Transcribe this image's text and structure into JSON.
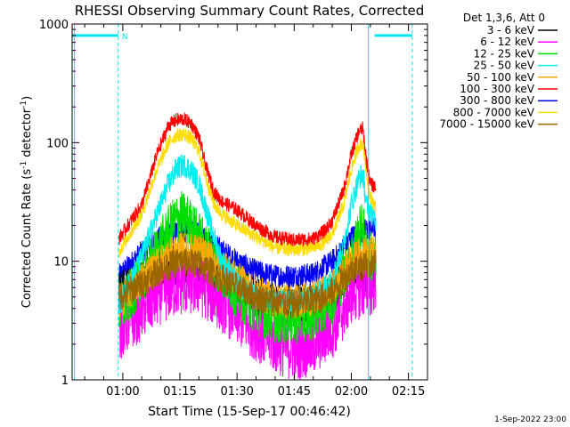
{
  "chart_data": {
    "type": "line",
    "title": "RHESSI Observing Summary Count Rates, Corrected",
    "xlabel": "Start Time (15-Sep-17 00:46:42)",
    "ylabel_main": "Corrected Count Rate (s",
    "ylabel_sup1": "-1",
    "ylabel_mid": " detector",
    "ylabel_sup2": "-1",
    "ylabel_end": ")",
    "yscale": "log",
    "ylim": [
      1,
      1000
    ],
    "xlim_minutes": [
      46.7,
      140.0
    ],
    "x_ticks": [
      {
        "label": "01:00",
        "minutes": 60
      },
      {
        "label": "01:15",
        "minutes": 75
      },
      {
        "label": "01:30",
        "minutes": 90
      },
      {
        "label": "01:45",
        "minutes": 105
      },
      {
        "label": "02:00",
        "minutes": 120
      },
      {
        "label": "02:15",
        "minutes": 135
      }
    ],
    "y_ticks": [
      {
        "label": "1",
        "value": 1
      },
      {
        "label": "10",
        "value": 10
      },
      {
        "label": "100",
        "value": 100
      },
      {
        "label": "1000",
        "value": 1000
      }
    ],
    "legend_header": "Det 1,3,6, Att 0",
    "legend_position": "top-right, outside plot",
    "annotations": {
      "night_marker": "N",
      "night_bar_level": 800,
      "night_segments_minutes": [
        [
          46.7,
          58.8
        ],
        [
          126.1,
          136.0
        ]
      ],
      "vertical_lines_minutes": [
        {
          "minutes": 47.3,
          "style": "solid"
        },
        {
          "minutes": 58.8,
          "style": "dashed"
        },
        {
          "minutes": 124.5,
          "style": "solid"
        },
        {
          "minutes": 136.0,
          "style": "dashed"
        }
      ],
      "line_color": "#00e5ee"
    },
    "series": [
      {
        "name": "3 - 6 keV",
        "color": "#000000",
        "points": [
          [
            59,
            5.5
          ],
          [
            65,
            7
          ],
          [
            70,
            8.5
          ],
          [
            75,
            9.5
          ],
          [
            80,
            9
          ],
          [
            85,
            7.5
          ],
          [
            90,
            6
          ],
          [
            95,
            5
          ],
          [
            100,
            4.3
          ],
          [
            105,
            4.2
          ],
          [
            110,
            4.5
          ],
          [
            115,
            5.5
          ],
          [
            118,
            7
          ],
          [
            120,
            8.5
          ],
          [
            122,
            8
          ],
          [
            124,
            8.2
          ],
          [
            126.5,
            8.3
          ]
        ]
      },
      {
        "name": "6 - 12 keV",
        "color": "#ff00ff",
        "points": [
          [
            59,
            2.7
          ],
          [
            65,
            4
          ],
          [
            70,
            5.5
          ],
          [
            75,
            6.5
          ],
          [
            80,
            6.5
          ],
          [
            85,
            5
          ],
          [
            90,
            3.6
          ],
          [
            95,
            2.7
          ],
          [
            100,
            2.1
          ],
          [
            105,
            1.8
          ],
          [
            110,
            2
          ],
          [
            115,
            2.8
          ],
          [
            118,
            4
          ],
          [
            120,
            5.5
          ],
          [
            122,
            6
          ],
          [
            124,
            6.2
          ],
          [
            126.5,
            6.5
          ]
        ]
      },
      {
        "name": "12 - 25 keV",
        "color": "#00dd00",
        "points": [
          [
            59,
            3.8
          ],
          [
            65,
            7
          ],
          [
            70,
            14
          ],
          [
            73,
            20
          ],
          [
            75,
            24
          ],
          [
            77,
            22
          ],
          [
            80,
            16
          ],
          [
            85,
            9
          ],
          [
            90,
            5.5
          ],
          [
            95,
            4
          ],
          [
            100,
            3.4
          ],
          [
            105,
            3.3
          ],
          [
            110,
            3.6
          ],
          [
            115,
            5
          ],
          [
            118,
            8
          ],
          [
            120,
            11
          ],
          [
            122,
            17
          ],
          [
            123,
            20
          ],
          [
            124,
            12
          ],
          [
            126.5,
            10
          ]
        ]
      },
      {
        "name": "25 - 50 keV",
        "color": "#00eeee",
        "points": [
          [
            59,
            4.3
          ],
          [
            65,
            11
          ],
          [
            69,
            25
          ],
          [
            72,
            45
          ],
          [
            74,
            60
          ],
          [
            76,
            65
          ],
          [
            78,
            58
          ],
          [
            80,
            45
          ],
          [
            83,
            20
          ],
          [
            86,
            10
          ],
          [
            90,
            6.5
          ],
          [
            95,
            5
          ],
          [
            100,
            4.6
          ],
          [
            105,
            4.6
          ],
          [
            110,
            5
          ],
          [
            115,
            7
          ],
          [
            118,
            14
          ],
          [
            120,
            30
          ],
          [
            122,
            50
          ],
          [
            123,
            55
          ],
          [
            124,
            30
          ],
          [
            126.5,
            22
          ]
        ]
      },
      {
        "name": "50 - 100 keV",
        "color": "#ffaa00",
        "points": [
          [
            59,
            4.5
          ],
          [
            65,
            7
          ],
          [
            70,
            10
          ],
          [
            75,
            12.5
          ],
          [
            80,
            12
          ],
          [
            85,
            9.5
          ],
          [
            90,
            7
          ],
          [
            95,
            5.5
          ],
          [
            100,
            4.7
          ],
          [
            105,
            4.6
          ],
          [
            110,
            4.8
          ],
          [
            115,
            6
          ],
          [
            118,
            8
          ],
          [
            120,
            10
          ],
          [
            122,
            11
          ],
          [
            124,
            11.5
          ],
          [
            126.5,
            11.5
          ]
        ]
      },
      {
        "name": "100 - 300 keV",
        "color": "#ff0000",
        "points": [
          [
            59,
            15.5
          ],
          [
            65,
            30
          ],
          [
            69,
            80
          ],
          [
            72,
            140
          ],
          [
            74,
            155
          ],
          [
            76,
            158
          ],
          [
            78,
            145
          ],
          [
            80,
            110
          ],
          [
            82,
            60
          ],
          [
            84,
            38
          ],
          [
            86,
            32
          ],
          [
            90,
            27
          ],
          [
            95,
            20
          ],
          [
            100,
            16
          ],
          [
            105,
            15
          ],
          [
            110,
            15.5
          ],
          [
            113,
            18
          ],
          [
            115,
            22
          ],
          [
            118,
            40
          ],
          [
            120,
            80
          ],
          [
            122,
            125
          ],
          [
            123,
            132
          ],
          [
            124,
            70
          ],
          [
            125,
            45
          ],
          [
            126.5,
            42
          ]
        ]
      },
      {
        "name": "300 - 800 keV",
        "color": "#0000ee",
        "points": [
          [
            59,
            7.5
          ],
          [
            65,
            12
          ],
          [
            70,
            16
          ],
          [
            75,
            18
          ],
          [
            80,
            17
          ],
          [
            85,
            13
          ],
          [
            90,
            10
          ],
          [
            95,
            8.2
          ],
          [
            100,
            7.5
          ],
          [
            105,
            7.5
          ],
          [
            110,
            7.8
          ],
          [
            115,
            10
          ],
          [
            118,
            13
          ],
          [
            120,
            16
          ],
          [
            122,
            17
          ],
          [
            124,
            18.5
          ],
          [
            126.5,
            19
          ]
        ]
      },
      {
        "name": "800 - 7000 keV",
        "color": "#ffdd00",
        "points": [
          [
            59,
            12
          ],
          [
            65,
            25
          ],
          [
            69,
            60
          ],
          [
            72,
            100
          ],
          [
            74,
            115
          ],
          [
            76,
            118
          ],
          [
            78,
            108
          ],
          [
            80,
            85
          ],
          [
            82,
            48
          ],
          [
            84,
            30
          ],
          [
            86,
            25
          ],
          [
            90,
            20
          ],
          [
            95,
            16
          ],
          [
            100,
            13
          ],
          [
            105,
            12.5
          ],
          [
            110,
            13
          ],
          [
            113,
            14.5
          ],
          [
            115,
            17
          ],
          [
            118,
            30
          ],
          [
            120,
            60
          ],
          [
            122,
            95
          ],
          [
            123,
            100
          ],
          [
            124,
            55
          ],
          [
            125,
            35
          ],
          [
            126.5,
            28
          ]
        ]
      },
      {
        "name": "7000 - 15000 keV",
        "color": "#996600",
        "points": [
          [
            59,
            5
          ],
          [
            65,
            6.5
          ],
          [
            70,
            8.5
          ],
          [
            75,
            10
          ],
          [
            80,
            9.5
          ],
          [
            85,
            7.5
          ],
          [
            90,
            6
          ],
          [
            95,
            5
          ],
          [
            100,
            4.5
          ],
          [
            105,
            4.4
          ],
          [
            110,
            4.6
          ],
          [
            115,
            5.5
          ],
          [
            118,
            7
          ],
          [
            120,
            8.5
          ],
          [
            122,
            9
          ],
          [
            124,
            9.5
          ],
          [
            126.5,
            9.5
          ]
        ]
      }
    ]
  },
  "footer_timestamp": "1-Sep-2022 23:00"
}
